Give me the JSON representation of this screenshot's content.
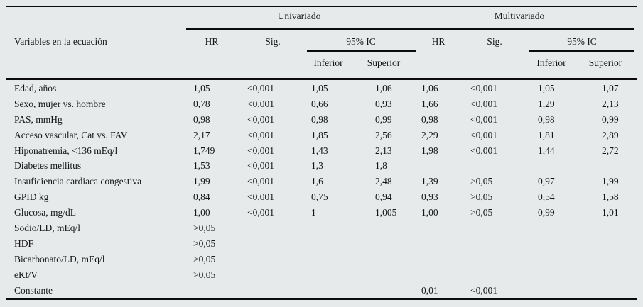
{
  "colors": {
    "background": "#e7eaea",
    "rule": "#0b0b0b",
    "text": "#161616"
  },
  "table": {
    "row_header": "Variables en la ecuación",
    "group_headers": {
      "univariate": "Univariado",
      "multivariate": "Multivariado"
    },
    "subheaders": {
      "hr": "HR",
      "sig": "Sig.",
      "ci": "95% IC",
      "lower": "Inferior",
      "upper": "Superior"
    },
    "rows": [
      {
        "label": "Edad, años",
        "cells": [
          "1,05",
          "<0,001",
          "1,05",
          "1,06",
          "1,06",
          "<0,001",
          "1,05",
          "1,07"
        ]
      },
      {
        "label": "Sexo, mujer vs. hombre",
        "cells": [
          "0,78",
          "<0,001",
          "0,66",
          "0,93",
          "1,66",
          "<0,001",
          "1,29",
          "2,13"
        ]
      },
      {
        "label": "PAS, mmHg",
        "cells": [
          "0,98",
          "<0,001",
          "0,98",
          "0,99",
          "0,98",
          "<0,001",
          "0,98",
          "0,99"
        ]
      },
      {
        "label": "Acceso vascular, Cat vs. FAV",
        "cells": [
          "2,17",
          "<0,001",
          "1,85",
          "2,56",
          "2,29",
          "<0,001",
          "1,81",
          "2,89"
        ]
      },
      {
        "label": "Hiponatremia, <136 mEq/l",
        "cells": [
          "1,749",
          "<0,001",
          "1,43",
          "2,13",
          "1,98",
          "<0,001",
          "1,44",
          "2,72"
        ]
      },
      {
        "label": "Diabetes mellitus",
        "cells": [
          "1,53",
          "<0,001",
          "1,3",
          "1,8",
          "",
          "",
          "",
          ""
        ]
      },
      {
        "label": "Insuficiencia cardiaca congestiva",
        "cells": [
          "1,99",
          "<0,001",
          "1,6",
          "2,48",
          "1,39",
          ">0,05",
          "0,97",
          "1,99"
        ]
      },
      {
        "label": "GPID kg",
        "cells": [
          "0,84",
          "<0,001",
          "0,75",
          "0,94",
          "0,93",
          ">0,05",
          "0,54",
          "1,58"
        ]
      },
      {
        "label": "Glucosa, mg/dL",
        "cells": [
          "1,00",
          "<0,001",
          "1",
          "1,005",
          "1,00",
          ">0,05",
          "0,99",
          "1,01"
        ]
      },
      {
        "label": "Sodio/LD, mEq/l",
        "cells": [
          ">0,05",
          "",
          "",
          "",
          "",
          "",
          "",
          ""
        ]
      },
      {
        "label": "HDF",
        "cells": [
          ">0,05",
          "",
          "",
          "",
          "",
          "",
          "",
          ""
        ]
      },
      {
        "label": "Bicarbonato/LD, mEq/l",
        "cells": [
          ">0,05",
          "",
          "",
          "",
          "",
          "",
          "",
          ""
        ]
      },
      {
        "label": "eKt/V",
        "cells": [
          ">0,05",
          "",
          "",
          "",
          "",
          "",
          "",
          ""
        ]
      },
      {
        "label": "Constante",
        "cells": [
          "",
          "",
          "",
          "",
          "0,01",
          "<0,001",
          "",
          ""
        ]
      }
    ]
  }
}
